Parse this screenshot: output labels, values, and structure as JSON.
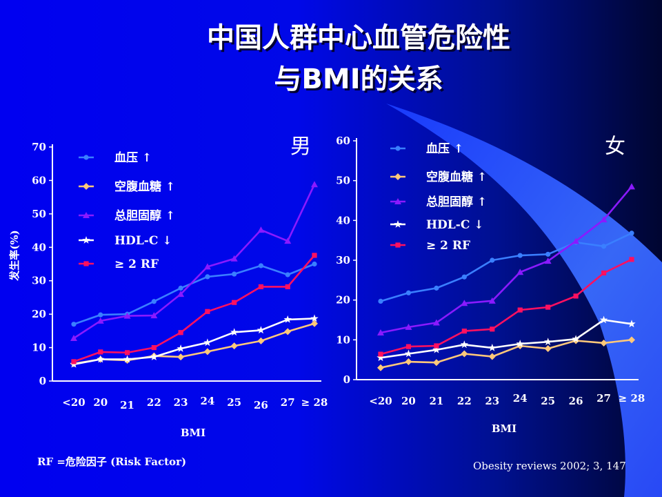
{
  "slide": {
    "title_line1": "中国人群中心血管危险性",
    "title_line2": "与BMI的关系",
    "footnote_left": "RF =危险因子 (Risk Factor)",
    "footnote_right": "Obesity reviews 2002; 3, 147"
  },
  "chart_data": [
    {
      "type": "line",
      "panel_label": "男",
      "xlabel": "BMI",
      "ylabel": "发生率(%)",
      "categories": [
        "<20",
        "20",
        "21",
        "22",
        "23",
        "24",
        "25",
        "26",
        "27",
        "≥ 28"
      ],
      "ylim": [
        0,
        70
      ],
      "yticks": [
        "0",
        "10",
        "20",
        "30",
        "40",
        "50",
        "60",
        "70"
      ],
      "legend_position": "top-left",
      "grid": false,
      "series": [
        {
          "name": "血压 ↑",
          "color": "#3a7fff",
          "marker": "circle",
          "values": [
            17,
            19.8,
            20,
            23.8,
            27.8,
            31.2,
            32,
            34.5,
            31.8,
            35
          ]
        },
        {
          "name": "空腹血糖 ↑",
          "color": "#ffc87a",
          "marker": "diamond",
          "values": [
            5.2,
            6.5,
            6.2,
            7.5,
            7.2,
            8.8,
            10.5,
            12,
            14.8,
            17.2
          ]
        },
        {
          "name": "总胆固醇 ↑",
          "color": "#8a1aff",
          "marker": "triangle",
          "values": [
            12.8,
            18,
            19.5,
            19.6,
            26,
            34.2,
            36.6,
            45.2,
            41.9,
            58.8
          ]
        },
        {
          "name": "HDL-C ↓",
          "color": "#ffffff",
          "marker": "star",
          "values": [
            5,
            6.5,
            6.5,
            7.2,
            9.7,
            11.5,
            14.6,
            15.2,
            18.4,
            18.7
          ]
        },
        {
          "name": "≥ 2 RF",
          "color": "#ff1060",
          "marker": "square",
          "values": [
            5.8,
            8.7,
            8.5,
            10,
            14.5,
            20.8,
            23.5,
            28.2,
            28.2,
            37.6
          ]
        }
      ]
    },
    {
      "type": "line",
      "panel_label": "女",
      "xlabel": "BMI",
      "ylabel": "",
      "categories": [
        "<20",
        "20",
        "21",
        "22",
        "23",
        "24",
        "25",
        "26",
        "27",
        "≥ 28"
      ],
      "ylim": [
        0,
        60
      ],
      "yticks": [
        "0",
        "10",
        "20",
        "30",
        "40",
        "50",
        "60"
      ],
      "legend_position": "top-left",
      "grid": false,
      "series": [
        {
          "name": "血压 ↑",
          "color": "#3a7fff",
          "marker": "circle",
          "values": [
            19.7,
            21.8,
            23,
            25.8,
            30,
            31.2,
            31.5,
            34.5,
            33.5,
            36.8
          ]
        },
        {
          "name": "空腹血糖 ↑",
          "color": "#ffc87a",
          "marker": "diamond",
          "values": [
            3,
            4.5,
            4.3,
            6.5,
            5.8,
            8.5,
            7.8,
            9.8,
            9.2,
            10
          ]
        },
        {
          "name": "总胆固醇 ↑",
          "color": "#8a1aff",
          "marker": "triangle",
          "values": [
            11.8,
            13.2,
            14.3,
            19.2,
            19.8,
            27,
            29.8,
            34.8,
            40.2,
            48.5
          ]
        },
        {
          "name": "HDL-C ↓",
          "color": "#ffffff",
          "marker": "star",
          "values": [
            5.5,
            6.5,
            7.5,
            8.8,
            8,
            9,
            9.5,
            10.2,
            15,
            14
          ]
        },
        {
          "name": "≥ 2 RF",
          "color": "#ff1060",
          "marker": "square",
          "values": [
            6.4,
            8.3,
            8.5,
            12.2,
            12.7,
            17.5,
            18.2,
            21,
            26.8,
            30.2
          ]
        }
      ]
    }
  ]
}
